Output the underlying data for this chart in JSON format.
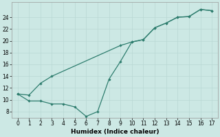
{
  "color": "#2e7d6e",
  "bg_color": "#cce8e4",
  "grid_color": "#b8d8d4",
  "xlabel": "Humidex (Indice chaleur)",
  "xlim": [
    -0.5,
    17.5
  ],
  "ylim": [
    7,
    26.5
  ],
  "yticks": [
    8,
    10,
    12,
    14,
    16,
    18,
    20,
    22,
    24
  ],
  "xticks": [
    0,
    1,
    2,
    3,
    4,
    5,
    6,
    7,
    8,
    9,
    10,
    11,
    12,
    13,
    14,
    15,
    16,
    17
  ],
  "x_upper": [
    0,
    1,
    2,
    3,
    9,
    10,
    11,
    12,
    13,
    14,
    15,
    16,
    17
  ],
  "y_upper": [
    11,
    10.8,
    12.8,
    14.0,
    19.2,
    19.8,
    20.2,
    22.2,
    23.0,
    24.0,
    24.1,
    25.3,
    25.1
  ],
  "x_lower": [
    0,
    1,
    2,
    3,
    4,
    5,
    6,
    7,
    8,
    9,
    10,
    11,
    12,
    13,
    14,
    15,
    16,
    17
  ],
  "y_lower": [
    11,
    9.8,
    9.8,
    9.3,
    9.3,
    8.8,
    7.2,
    8.0,
    13.5,
    16.5,
    19.8,
    20.2,
    22.2,
    23.0,
    24.0,
    24.1,
    25.3,
    25.1
  ]
}
